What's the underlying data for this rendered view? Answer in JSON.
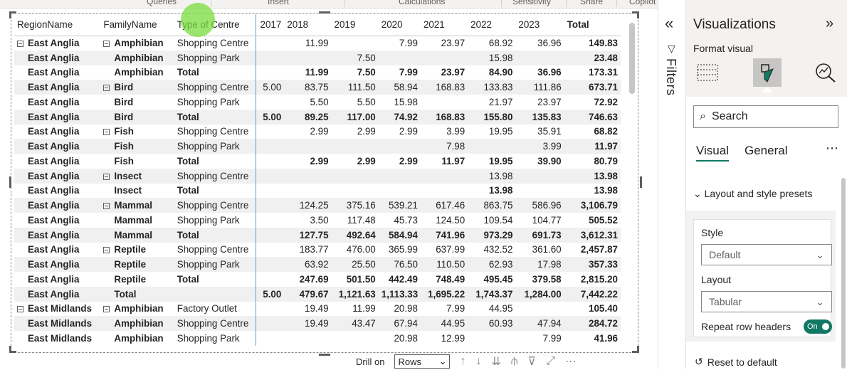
{
  "ribbon": {
    "items": [
      "Queries",
      "Insert",
      "Calculations",
      "Sensitivity",
      "Share",
      "Copilot"
    ]
  },
  "matrix": {
    "columns": [
      "RegionName",
      "FamilyName",
      "Type of Centre",
      "2017",
      "2018",
      "2019",
      "2020",
      "2021",
      "2022",
      "2023",
      "Total"
    ],
    "rows": [
      {
        "region": "East Anglia",
        "family": "Amphibian",
        "type": "Shopping Centre",
        "vals": [
          "",
          "11.99",
          "",
          "7.99",
          "23.97",
          "68.92",
          "36.96",
          "149.83"
        ],
        "bold": false,
        "regExp": true,
        "famExp": true
      },
      {
        "region": "East Anglia",
        "family": "Amphibian",
        "type": "Shopping Park",
        "vals": [
          "",
          "",
          "7.50",
          "",
          "",
          "15.98",
          "",
          "23.48"
        ],
        "bold": false,
        "regExp": false,
        "famExp": false
      },
      {
        "region": "East Anglia",
        "family": "Amphibian",
        "type": "Total",
        "vals": [
          "",
          "11.99",
          "7.50",
          "7.99",
          "23.97",
          "84.90",
          "36.96",
          "173.31"
        ],
        "bold": true,
        "regExp": false,
        "famExp": false
      },
      {
        "region": "East Anglia",
        "family": "Bird",
        "type": "Shopping Centre",
        "vals": [
          "5.00",
          "83.75",
          "111.50",
          "58.94",
          "168.83",
          "133.83",
          "111.86",
          "673.71"
        ],
        "bold": false,
        "regExp": false,
        "famExp": true
      },
      {
        "region": "East Anglia",
        "family": "Bird",
        "type": "Shopping Park",
        "vals": [
          "",
          "5.50",
          "5.50",
          "15.98",
          "",
          "21.97",
          "23.97",
          "72.92"
        ],
        "bold": false,
        "regExp": false,
        "famExp": false
      },
      {
        "region": "East Anglia",
        "family": "Bird",
        "type": "Total",
        "vals": [
          "5.00",
          "89.25",
          "117.00",
          "74.92",
          "168.83",
          "155.80",
          "135.83",
          "746.63"
        ],
        "bold": true,
        "regExp": false,
        "famExp": false
      },
      {
        "region": "East Anglia",
        "family": "Fish",
        "type": "Shopping Centre",
        "vals": [
          "",
          "2.99",
          "2.99",
          "2.99",
          "3.99",
          "19.95",
          "35.91",
          "68.82"
        ],
        "bold": false,
        "regExp": false,
        "famExp": true
      },
      {
        "region": "East Anglia",
        "family": "Fish",
        "type": "Shopping Park",
        "vals": [
          "",
          "",
          "",
          "",
          "7.98",
          "",
          "3.99",
          "11.97"
        ],
        "bold": false,
        "regExp": false,
        "famExp": false
      },
      {
        "region": "East Anglia",
        "family": "Fish",
        "type": "Total",
        "vals": [
          "",
          "2.99",
          "2.99",
          "2.99",
          "11.97",
          "19.95",
          "39.90",
          "80.79"
        ],
        "bold": true,
        "regExp": false,
        "famExp": false
      },
      {
        "region": "East Anglia",
        "family": "Insect",
        "type": "Shopping Centre",
        "vals": [
          "",
          "",
          "",
          "",
          "",
          "13.98",
          "",
          "13.98"
        ],
        "bold": false,
        "regExp": false,
        "famExp": true
      },
      {
        "region": "East Anglia",
        "family": "Insect",
        "type": "Total",
        "vals": [
          "",
          "",
          "",
          "",
          "",
          "13.98",
          "",
          "13.98"
        ],
        "bold": true,
        "regExp": false,
        "famExp": false
      },
      {
        "region": "East Anglia",
        "family": "Mammal",
        "type": "Shopping Centre",
        "vals": [
          "",
          "124.25",
          "375.16",
          "539.21",
          "617.46",
          "863.75",
          "586.96",
          "3,106.79"
        ],
        "bold": false,
        "regExp": false,
        "famExp": true
      },
      {
        "region": "East Anglia",
        "family": "Mammal",
        "type": "Shopping Park",
        "vals": [
          "",
          "3.50",
          "117.48",
          "45.73",
          "124.50",
          "109.54",
          "104.77",
          "505.52"
        ],
        "bold": false,
        "regExp": false,
        "famExp": false
      },
      {
        "region": "East Anglia",
        "family": "Mammal",
        "type": "Total",
        "vals": [
          "",
          "127.75",
          "492.64",
          "584.94",
          "741.96",
          "973.29",
          "691.73",
          "3,612.31"
        ],
        "bold": true,
        "regExp": false,
        "famExp": false
      },
      {
        "region": "East Anglia",
        "family": "Reptile",
        "type": "Shopping Centre",
        "vals": [
          "",
          "183.77",
          "476.00",
          "365.99",
          "637.99",
          "432.52",
          "361.60",
          "2,457.87"
        ],
        "bold": false,
        "regExp": false,
        "famExp": true
      },
      {
        "region": "East Anglia",
        "family": "Reptile",
        "type": "Shopping Park",
        "vals": [
          "",
          "63.92",
          "25.50",
          "76.50",
          "110.50",
          "62.93",
          "17.98",
          "357.33"
        ],
        "bold": false,
        "regExp": false,
        "famExp": false
      },
      {
        "region": "East Anglia",
        "family": "Reptile",
        "type": "Total",
        "vals": [
          "",
          "247.69",
          "501.50",
          "442.49",
          "748.49",
          "495.45",
          "379.58",
          "2,815.20"
        ],
        "bold": true,
        "regExp": false,
        "famExp": false
      },
      {
        "region": "East Anglia",
        "family": "Total",
        "type": "",
        "vals": [
          "5.00",
          "479.67",
          "1,121.63",
          "1,113.33",
          "1,695.22",
          "1,743.37",
          "1,284.00",
          "7,442.22"
        ],
        "bold": true,
        "regExp": false,
        "famExp": false
      },
      {
        "region": "East Midlands",
        "family": "Amphibian",
        "type": "Factory Outlet",
        "vals": [
          "",
          "19.49",
          "11.99",
          "20.98",
          "7.99",
          "44.95",
          "",
          "105.40"
        ],
        "bold": false,
        "regExp": true,
        "famExp": true
      },
      {
        "region": "East Midlands",
        "family": "Amphibian",
        "type": "Shopping Centre",
        "vals": [
          "",
          "19.49",
          "43.47",
          "67.94",
          "44.95",
          "60.93",
          "47.94",
          "284.72"
        ],
        "bold": false,
        "regExp": false,
        "famExp": false
      },
      {
        "region": "East Midlands",
        "family": "Amphibian",
        "type": "Shopping Park",
        "vals": [
          "",
          "",
          "",
          "20.98",
          "12.99",
          "",
          "7.99",
          "41.96"
        ],
        "bold": false,
        "regExp": false,
        "famExp": false
      }
    ]
  },
  "bottom_bar": {
    "drill_label": "Drill on",
    "drill_value": "Rows"
  },
  "filters_pane": {
    "label": "Filters"
  },
  "viz_pane": {
    "title": "Visualizations",
    "format_label": "Format visual",
    "search_placeholder": "Search",
    "tab_visual": "Visual",
    "tab_general": "General",
    "preset_header": "Layout and style presets",
    "style_label": "Style",
    "style_value": "Default",
    "layout_label": "Layout",
    "layout_value": "Tabular",
    "repeat_label": "Repeat row headers",
    "toggle_text": "On",
    "reset_label": "Reset to default"
  },
  "colors": {
    "accent": "#117865",
    "column_divider": "#5b9bd5",
    "cursor_highlight": "#78dc3c"
  }
}
